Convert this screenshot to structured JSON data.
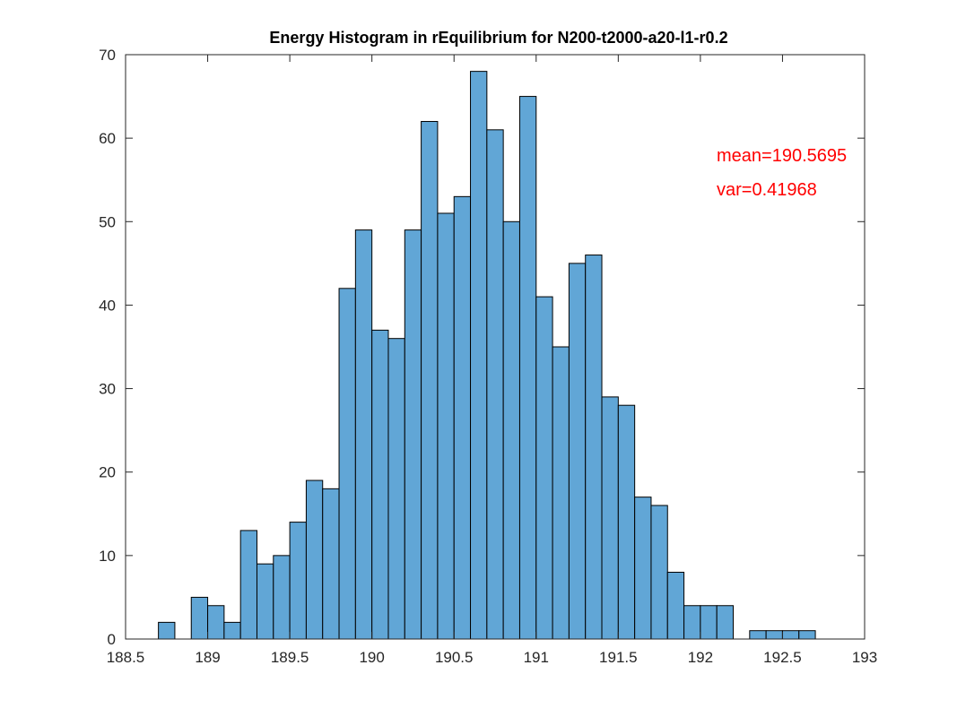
{
  "chart_data": {
    "type": "bar",
    "title": "Energy Histogram in rEquilibrium for N200-t2000-a20-l1-r0.2",
    "xlabel": "",
    "ylabel": "",
    "xlim": [
      188.5,
      193
    ],
    "ylim": [
      0,
      70
    ],
    "xticks": [
      188.5,
      189,
      189.5,
      190,
      190.5,
      191,
      191.5,
      192,
      192.5,
      193
    ],
    "xtick_labels": [
      "188.5",
      "189",
      "189.5",
      "190",
      "190.5",
      "191",
      "191.5",
      "192",
      "192.5",
      "193"
    ],
    "yticks": [
      0,
      10,
      20,
      30,
      40,
      50,
      60,
      70
    ],
    "ytick_labels": [
      "0",
      "10",
      "20",
      "30",
      "40",
      "50",
      "60",
      "70"
    ],
    "bin_width": 0.1,
    "bin_start": 188.7,
    "values": [
      2,
      0,
      5,
      4,
      2,
      13,
      9,
      10,
      14,
      19,
      18,
      42,
      49,
      37,
      36,
      49,
      62,
      51,
      53,
      68,
      61,
      50,
      65,
      41,
      35,
      45,
      46,
      29,
      28,
      17,
      16,
      8,
      4,
      4,
      4,
      0,
      1,
      1,
      1,
      1
    ],
    "bar_color": "#61a6d6",
    "grid": false,
    "annotations": [
      "mean=190.5695",
      "var=0.41968"
    ],
    "annotation_color": "#ff0000"
  }
}
